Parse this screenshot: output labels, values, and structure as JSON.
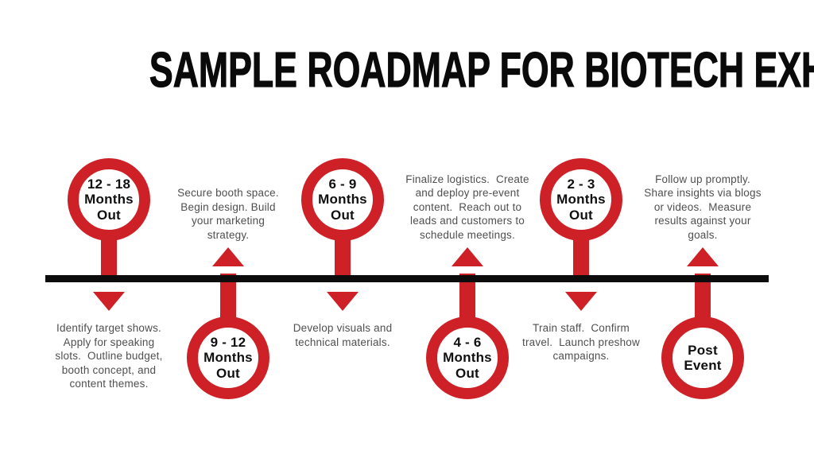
{
  "title": "SAMPLE ROADMAP FOR BIOTECH EXHIBITS",
  "colors": {
    "accent_red": "#cd2127",
    "timeline_black": "#0c0c0c",
    "description_gray": "#4f4f4f"
  },
  "milestones": [
    {
      "id": "12-18-months-out",
      "circle_side": "above",
      "circle_label": "12 - 18\nMonths\nOut",
      "description": "Identify target shows.\nApply for speaking\nslots.  Outline budget,\nbooth concept, and\ncontent themes."
    },
    {
      "id": "9-12-months-out",
      "circle_side": "below",
      "circle_label": "9 - 12\nMonths\nOut",
      "description": "Secure booth space.\nBegin design. Build\nyour marketing\nstrategy."
    },
    {
      "id": "6-9-months-out",
      "circle_side": "above",
      "circle_label": "6 - 9\nMonths\nOut",
      "description": "Develop visuals and\ntechnical materials."
    },
    {
      "id": "4-6-months-out",
      "circle_side": "below",
      "circle_label": "4 - 6\nMonths\nOut",
      "description": "Finalize logistics.  Create\nand deploy pre-event\ncontent.  Reach out to\nleads and customers to\nschedule meetings."
    },
    {
      "id": "2-3-months-out",
      "circle_side": "above",
      "circle_label": "2 - 3\nMonths\nOut",
      "description": "Train staff.  Confirm\ntravel.  Launch preshow\ncampaigns."
    },
    {
      "id": "post-event",
      "circle_side": "below",
      "circle_label": "Post\nEvent",
      "description": "Follow up promptly.\nShare insights via blogs\nor videos.  Measure\nresults against your\ngoals."
    }
  ]
}
